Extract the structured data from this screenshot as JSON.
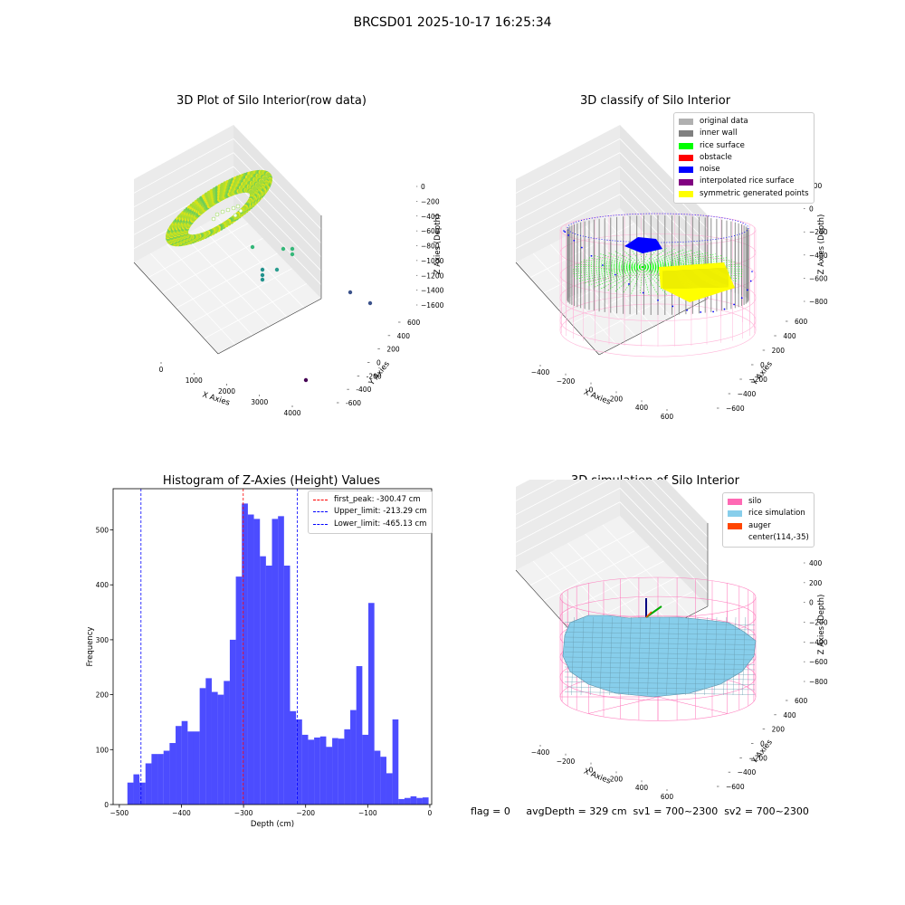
{
  "figure": {
    "suptitle": "BRCSD01 2025-10-17 16:25:34",
    "status_line": "flag = 0     avgDepth = 329 cm  sv1 = 700~2300  sv2 = 700~2300"
  },
  "chart_data": [
    {
      "id": "raw",
      "type": "scatter",
      "title": "3D Plot of Silo Interior(row data)",
      "xlabel": "X Axies",
      "ylabel": "Y Axies",
      "zlabel": "Z Axies (Depth)",
      "x_ticks": [
        "0",
        "1000",
        "2000",
        "3000",
        "4000"
      ],
      "y_ticks": [
        "-600",
        "-400",
        "-200",
        "0",
        "200",
        "400",
        "600"
      ],
      "z_ticks": [
        "0",
        "−200",
        "−400",
        "−600",
        "−800",
        "−1000",
        "−1200",
        "−1400",
        "−1600"
      ],
      "colormap": "viridis",
      "outlier_points": [
        {
          "x": 1950,
          "y": -300,
          "z": -780
        },
        {
          "x": 2500,
          "y": -300,
          "z": -780
        },
        {
          "x": 2700,
          "y": -320,
          "z": -800
        },
        {
          "x": 2750,
          "y": -340,
          "z": -820
        },
        {
          "x": 2000,
          "y": -500,
          "z": -1000
        },
        {
          "x": 2050,
          "y": -520,
          "z": -1050
        },
        {
          "x": 2050,
          "y": -540,
          "z": -1100
        },
        {
          "x": 2500,
          "y": -500,
          "z": -1000
        },
        {
          "x": 3800,
          "y": -500,
          "z": -1400
        },
        {
          "x": 4200,
          "y": -500,
          "z": -1450
        },
        {
          "x": 4100,
          "y": -640,
          "z": -1500
        }
      ]
    },
    {
      "id": "classify",
      "type": "scatter",
      "title": "3D classify of Silo Interior",
      "xlabel": "X Axies",
      "ylabel": "Y Axies",
      "zlabel": "Z Axies (Depth)",
      "x_ticks": [
        "−400",
        "−200",
        "0",
        "200",
        "400",
        "600"
      ],
      "y_ticks": [
        "−600",
        "−400",
        "−200",
        "0",
        "200",
        "400",
        "600"
      ],
      "z_ticks": [
        "200",
        "0",
        "−200",
        "−400",
        "−600",
        "−800"
      ],
      "legend": [
        {
          "label": "original data",
          "color": "#b0b0b0"
        },
        {
          "label": "inner wall",
          "color": "#808080"
        },
        {
          "label": "rice surface",
          "color": "#00ff00"
        },
        {
          "label": "obstacle",
          "color": "#ff0000"
        },
        {
          "label": "noise",
          "color": "#0000ff"
        },
        {
          "label": "interpolated rice surface",
          "color": "#800080"
        },
        {
          "label": "symmetric generated points",
          "color": "#ffff00"
        }
      ]
    },
    {
      "id": "histogram",
      "type": "bar",
      "title": "Histogram of Z-Axies (Height) Values",
      "xlabel": "Depth (cm)",
      "ylabel": "Frequency",
      "xlim": [
        -510,
        3
      ],
      "ylim": [
        0,
        575
      ],
      "x_ticks": [
        -500,
        -400,
        -300,
        -200,
        -100,
        0
      ],
      "x_tick_labels": [
        "−500",
        "−400",
        "−300",
        "−200",
        "−100",
        "0"
      ],
      "y_ticks": [
        0,
        100,
        200,
        300,
        400,
        500
      ],
      "y_tick_labels": [
        "0",
        "100",
        "200",
        "300",
        "400",
        "500"
      ],
      "bar_color": "#0000ff",
      "bin_start": -487,
      "bin_width": 9.7,
      "values": [
        40,
        55,
        40,
        75,
        92,
        92,
        98,
        112,
        143,
        152,
        133,
        133,
        212,
        230,
        205,
        200,
        225,
        300,
        415,
        548,
        528,
        520,
        452,
        435,
        520,
        525,
        435,
        170,
        155,
        127,
        118,
        122,
        124,
        105,
        121,
        120,
        137,
        172,
        252,
        127,
        367,
        98,
        87,
        57,
        155,
        10,
        12,
        15,
        12,
        13
      ],
      "vlines": [
        {
          "label": "first_peak: -300.47 cm",
          "x": -300.47,
          "color": "#ff0000"
        },
        {
          "label": "Upper_limit: -213.29 cm",
          "x": -213.29,
          "color": "#0000ff"
        },
        {
          "label": "Lower_limit: -465.13 cm",
          "x": -465.13,
          "color": "#0000ff"
        }
      ]
    },
    {
      "id": "simulation",
      "type": "scatter",
      "title": "3D simulation of Silo Interior",
      "xlabel": "X Axies",
      "ylabel": "Y Axies",
      "zlabel": "Z Axies (Depth)",
      "x_ticks": [
        "−400",
        "−200",
        "0",
        "200",
        "400",
        "600"
      ],
      "y_ticks": [
        "−600",
        "−400",
        "−200",
        "0",
        "200",
        "400",
        "600"
      ],
      "z_ticks": [
        "400",
        "200",
        "0",
        "−200",
        "−400",
        "−600",
        "−800"
      ],
      "legend": [
        {
          "label": "silo",
          "color": "#ff69b4"
        },
        {
          "label": "rice simulation",
          "color": "#87ceeb"
        },
        {
          "label": "auger",
          "color": "#ff4500"
        },
        {
          "label": "center(114,-35)",
          "color": ""
        }
      ]
    }
  ]
}
